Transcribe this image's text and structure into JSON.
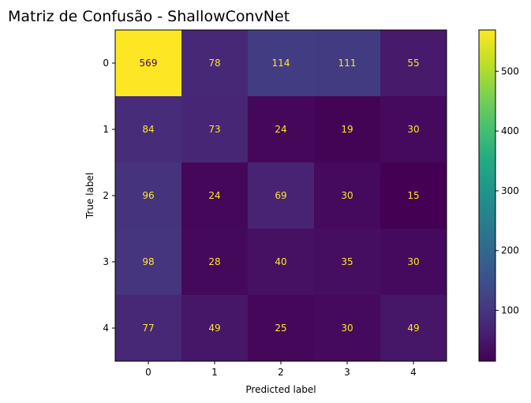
{
  "chart_data": {
    "type": "heatmap",
    "title": "Matriz de Confusão - ShallowConvNet",
    "xlabel": "Predicted label",
    "ylabel": "True label",
    "x_categories": [
      "0",
      "1",
      "2",
      "3",
      "4"
    ],
    "y_categories": [
      "0",
      "1",
      "2",
      "3",
      "4"
    ],
    "matrix": [
      [
        569,
        78,
        114,
        111,
        55
      ],
      [
        84,
        73,
        24,
        19,
        30
      ],
      [
        96,
        24,
        69,
        30,
        15
      ],
      [
        98,
        28,
        40,
        35,
        30
      ],
      [
        77,
        49,
        25,
        30,
        49
      ]
    ],
    "colormap": "viridis",
    "value_range": [
      15,
      569
    ],
    "colorbar_ticks": [
      100,
      200,
      300,
      400,
      500
    ],
    "annotation_colors": {
      "on_dark": "#fde725",
      "on_light": "#440154"
    }
  }
}
